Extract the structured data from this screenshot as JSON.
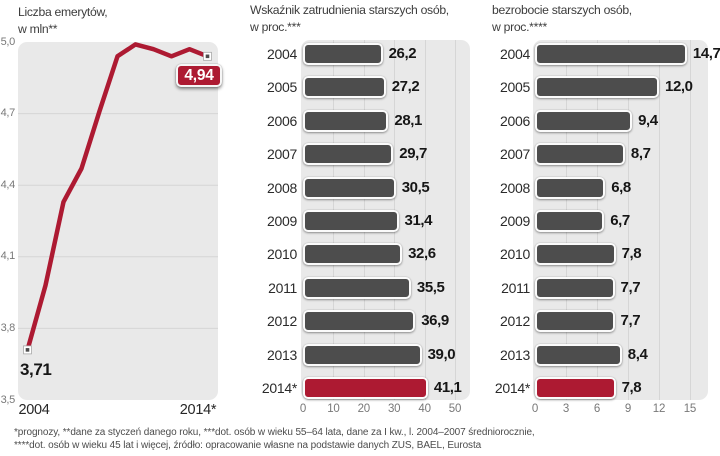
{
  "colors": {
    "red": "#ad1a32",
    "bar_gray": "#4d4d4d",
    "panel_bg": "#e9e9e9",
    "grid": "#d6d6d6"
  },
  "footnote": {
    "line1": "*prognozy, **dane za styczeń danego roku, ***dot. osób w wieku 55–64 lata, dane za I kw., l. 2004–2007 średniorocznie,",
    "line2": "****dot. osób w wieku 45 lat i więcej, źródło: opracowanie własne na podstawie danych ZUS, BAEL, Eurosta"
  },
  "chart_data": [
    {
      "id": "pensioners",
      "type": "line",
      "title": "Liczba emerytów,",
      "subtitle": "w mln**",
      "x": [
        2004,
        2005,
        2006,
        2007,
        2008,
        2009,
        2010,
        2011,
        2012,
        2013,
        2014
      ],
      "values": [
        3.71,
        3.98,
        4.33,
        4.47,
        4.71,
        4.94,
        4.99,
        4.97,
        4.94,
        4.97,
        4.94
      ],
      "ylim": [
        3.5,
        5.0
      ],
      "yticks": [
        5.0,
        4.7,
        4.4,
        4.1,
        3.8,
        3.5
      ],
      "x_axis_labels": [
        "2004",
        "2014*"
      ],
      "first_point_label": "3,71",
      "last_point_label": "4,94",
      "grid": "horizontal",
      "legend": "none"
    },
    {
      "id": "employment-rate",
      "type": "bar",
      "title": "Wskaźnik zatrudnienia starszych osób,",
      "subtitle": "w proc.***",
      "categories": [
        "2004",
        "2005",
        "2006",
        "2007",
        "2008",
        "2009",
        "2010",
        "2011",
        "2012",
        "2013",
        "2014*"
      ],
      "values": [
        26.2,
        27.2,
        28.1,
        29.7,
        30.5,
        31.4,
        32.6,
        35.5,
        36.9,
        39.0,
        41.1
      ],
      "xlim": [
        0,
        50
      ],
      "xticks": [
        0,
        10,
        20,
        30,
        40,
        50
      ],
      "highlight_last": true,
      "orientation": "horizontal",
      "grid": "vertical",
      "legend": "none"
    },
    {
      "id": "unemployment",
      "type": "bar",
      "title": "bezrobocie starszych osób,",
      "subtitle": "w proc.****",
      "categories": [
        "2004",
        "2005",
        "2006",
        "2007",
        "2008",
        "2009",
        "2010",
        "2011",
        "2012",
        "2013",
        "2014*"
      ],
      "values": [
        14.7,
        12.0,
        9.4,
        8.7,
        6.8,
        6.7,
        7.8,
        7.7,
        7.7,
        8.4,
        7.8
      ],
      "xlim": [
        0,
        15
      ],
      "xticks": [
        0,
        3,
        6,
        9,
        12,
        15
      ],
      "highlight_last": true,
      "orientation": "horizontal",
      "grid": "vertical",
      "legend": "none"
    }
  ]
}
